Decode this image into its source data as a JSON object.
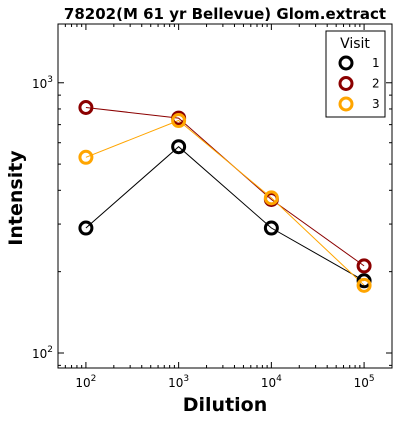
{
  "chart_data": {
    "type": "line",
    "title": "78202(M 61 yr Bellevue) Glom.extract",
    "xlabel": "Dilution",
    "ylabel": "Intensity",
    "x_scale": "log",
    "y_scale": "log",
    "xlim": [
      50,
      200000
    ],
    "ylim": [
      88,
      1650
    ],
    "x_ticks": [
      {
        "value": 100,
        "base": "10",
        "exp": "2"
      },
      {
        "value": 1000,
        "base": "10",
        "exp": "3"
      },
      {
        "value": 10000,
        "base": "10",
        "exp": "4"
      },
      {
        "value": 100000,
        "base": "10",
        "exp": "5"
      }
    ],
    "y_ticks": [
      {
        "value": 100,
        "base": "10",
        "exp": "2"
      },
      {
        "value": 1000,
        "base": "10",
        "exp": "3"
      }
    ],
    "x": [
      100,
      1000,
      10000,
      100000
    ],
    "series": [
      {
        "name": "1",
        "color": "#000000",
        "values": [
          290,
          580,
          290,
          185
        ]
      },
      {
        "name": "2",
        "color": "#8b0000",
        "values": [
          810,
          740,
          370,
          210
        ]
      },
      {
        "name": "3",
        "color": "#ffa500",
        "values": [
          530,
          725,
          375,
          178
        ]
      }
    ],
    "legend": {
      "title": "Visit",
      "position": "top-right"
    },
    "grid": false
  }
}
